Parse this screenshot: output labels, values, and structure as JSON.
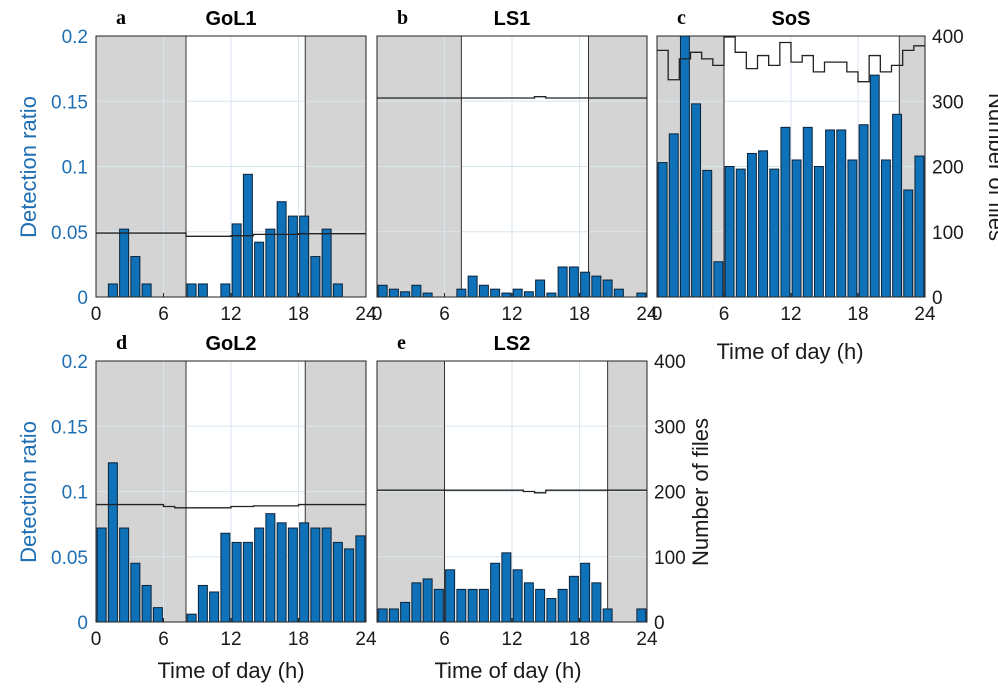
{
  "figure": {
    "ylabel_left": "Detection ratio",
    "ylabel_right": "Number of files",
    "xlabel": "Time of day (h)"
  },
  "colors": {
    "bar_fill": "#0f72b8",
    "bar_edge": "#0b2239",
    "night_shade": "#d4d4d4",
    "grid": "#d8e6f0",
    "files_line": "#222222",
    "left_axis": "#1f6fb4"
  },
  "chart_data": [
    {
      "type": "bar",
      "letter": "a",
      "title": "GoL1",
      "xlim": [
        0,
        24
      ],
      "ylim": [
        0,
        0.2
      ],
      "y2lim": [
        0,
        400
      ],
      "xticks": [
        "0",
        "6",
        "12",
        "18",
        "24"
      ],
      "yticks": [
        "0",
        "0.05",
        "0.1",
        "0.15",
        "0.2"
      ],
      "y2ticks": [],
      "night": [
        [
          0,
          8
        ],
        [
          18.6,
          24
        ]
      ],
      "hours": [
        0.5,
        1.5,
        2.5,
        3.5,
        4.5,
        5.5,
        6.5,
        7.5,
        8.5,
        9.5,
        10.5,
        11.5,
        12.5,
        13.5,
        14.5,
        15.5,
        16.5,
        17.5,
        18.5,
        19.5,
        20.5,
        21.5,
        22.5,
        23.5
      ],
      "values": [
        0,
        0.01,
        0.052,
        0.031,
        0.01,
        0,
        0,
        0,
        0.01,
        0.01,
        0,
        0.01,
        0.056,
        0.094,
        0.042,
        0.052,
        0.073,
        0.062,
        0.062,
        0.031,
        0.052,
        0.01,
        0,
        0
      ],
      "files": [
        98,
        98,
        98,
        98,
        98,
        98,
        98,
        98,
        93,
        93,
        93,
        93,
        94,
        94,
        96,
        96,
        96,
        96,
        97,
        97,
        97,
        97,
        97,
        97
      ]
    },
    {
      "type": "bar",
      "letter": "b",
      "title": "LS1",
      "xlim": [
        0,
        24
      ],
      "ylim": [
        0,
        0.2
      ],
      "y2lim": [
        0,
        400
      ],
      "xticks": [
        "0",
        "6",
        "12",
        "18",
        "24"
      ],
      "yticks": [],
      "y2ticks": [],
      "night": [
        [
          0,
          7.5
        ],
        [
          18.8,
          24
        ]
      ],
      "hours": [
        0.5,
        1.5,
        2.5,
        3.5,
        4.5,
        5.5,
        6.5,
        7.5,
        8.5,
        9.5,
        10.5,
        11.5,
        12.5,
        13.5,
        14.5,
        15.5,
        16.5,
        17.5,
        18.5,
        19.5,
        20.5,
        21.5,
        22.5,
        23.5
      ],
      "values": [
        0.009,
        0.006,
        0.004,
        0.009,
        0.003,
        0,
        0,
        0.006,
        0.016,
        0.009,
        0.006,
        0.003,
        0.006,
        0.004,
        0.013,
        0.003,
        0.023,
        0.023,
        0.019,
        0.016,
        0.013,
        0.006,
        0,
        0.003
      ],
      "files": [
        305,
        305,
        305,
        305,
        305,
        305,
        305,
        305,
        305,
        305,
        305,
        305,
        305,
        305,
        307,
        305,
        305,
        305,
        305,
        305,
        305,
        305,
        305,
        305
      ]
    },
    {
      "type": "bar",
      "letter": "c",
      "title": "SoS",
      "xlim": [
        0,
        24
      ],
      "ylim": [
        0,
        0.2
      ],
      "y2lim": [
        0,
        400
      ],
      "xticks": [
        "0",
        "6",
        "12",
        "18",
        "24"
      ],
      "yticks": [],
      "y2ticks": [
        "0",
        "100",
        "200",
        "300",
        "400"
      ],
      "night": [
        [
          0,
          6
        ],
        [
          21.7,
          24
        ]
      ],
      "hours": [
        0.5,
        1.5,
        2.5,
        3.5,
        4.5,
        5.5,
        6.5,
        7.5,
        8.5,
        9.5,
        10.5,
        11.5,
        12.5,
        13.5,
        14.5,
        15.5,
        16.5,
        17.5,
        18.5,
        19.5,
        20.5,
        21.5,
        22.5,
        23.5
      ],
      "values": [
        0.103,
        0.125,
        0.205,
        0.148,
        0.097,
        0.027,
        0.1,
        0.098,
        0.11,
        0.112,
        0.098,
        0.13,
        0.105,
        0.13,
        0.1,
        0.128,
        0.128,
        0.105,
        0.132,
        0.17,
        0.105,
        0.14,
        0.082,
        0.108
      ],
      "files": [
        378,
        333,
        365,
        375,
        365,
        355,
        400,
        375,
        350,
        370,
        355,
        390,
        360,
        370,
        345,
        360,
        360,
        345,
        330,
        370,
        345,
        355,
        378,
        385
      ]
    },
    {
      "type": "bar",
      "letter": "d",
      "title": "GoL2",
      "xlim": [
        0,
        24
      ],
      "ylim": [
        0,
        0.2
      ],
      "y2lim": [
        0,
        400
      ],
      "xticks": [
        "0",
        "6",
        "12",
        "18",
        "24"
      ],
      "yticks": [
        "0",
        "0.05",
        "0.1",
        "0.15",
        "0.2"
      ],
      "y2ticks": [],
      "night": [
        [
          0,
          8
        ],
        [
          18.6,
          24
        ]
      ],
      "hours": [
        0.5,
        1.5,
        2.5,
        3.5,
        4.5,
        5.5,
        6.5,
        7.5,
        8.5,
        9.5,
        10.5,
        11.5,
        12.5,
        13.5,
        14.5,
        15.5,
        16.5,
        17.5,
        18.5,
        19.5,
        20.5,
        21.5,
        22.5,
        23.5
      ],
      "values": [
        0.072,
        0.122,
        0.072,
        0.045,
        0.028,
        0.011,
        0,
        0,
        0.006,
        0.028,
        0.023,
        0.068,
        0.061,
        0.061,
        0.072,
        0.083,
        0.076,
        0.072,
        0.076,
        0.072,
        0.072,
        0.061,
        0.056,
        0.066
      ],
      "files": [
        180,
        180,
        180,
        180,
        180,
        180,
        177,
        175,
        175,
        175,
        175,
        175,
        177,
        177,
        178,
        178,
        178,
        178,
        180,
        180,
        180,
        180,
        180,
        180
      ]
    },
    {
      "type": "bar",
      "letter": "e",
      "title": "LS2",
      "xlim": [
        0,
        24
      ],
      "ylim": [
        0,
        0.2
      ],
      "y2lim": [
        0,
        400
      ],
      "xticks": [
        "6",
        "12",
        "18",
        "24"
      ],
      "yticks": [],
      "y2ticks": [
        "0",
        "100",
        "200",
        "300",
        "400"
      ],
      "night": [
        [
          0,
          6
        ],
        [
          20.5,
          24
        ]
      ],
      "hours": [
        0.5,
        1.5,
        2.5,
        3.5,
        4.5,
        5.5,
        6.5,
        7.5,
        8.5,
        9.5,
        10.5,
        11.5,
        12.5,
        13.5,
        14.5,
        15.5,
        16.5,
        17.5,
        18.5,
        19.5,
        20.5,
        21.5,
        22.5,
        23.5
      ],
      "values": [
        0.01,
        0.01,
        0.015,
        0.03,
        0.033,
        0.025,
        0.04,
        0.025,
        0.025,
        0.025,
        0.045,
        0.053,
        0.04,
        0.03,
        0.025,
        0.018,
        0.025,
        0.035,
        0.045,
        0.03,
        0.01,
        0,
        0,
        0.01
      ],
      "files": [
        202,
        202,
        202,
        202,
        202,
        202,
        202,
        202,
        202,
        202,
        202,
        202,
        202,
        200,
        198,
        202,
        202,
        202,
        202,
        202,
        202,
        202,
        202,
        202
      ]
    }
  ]
}
